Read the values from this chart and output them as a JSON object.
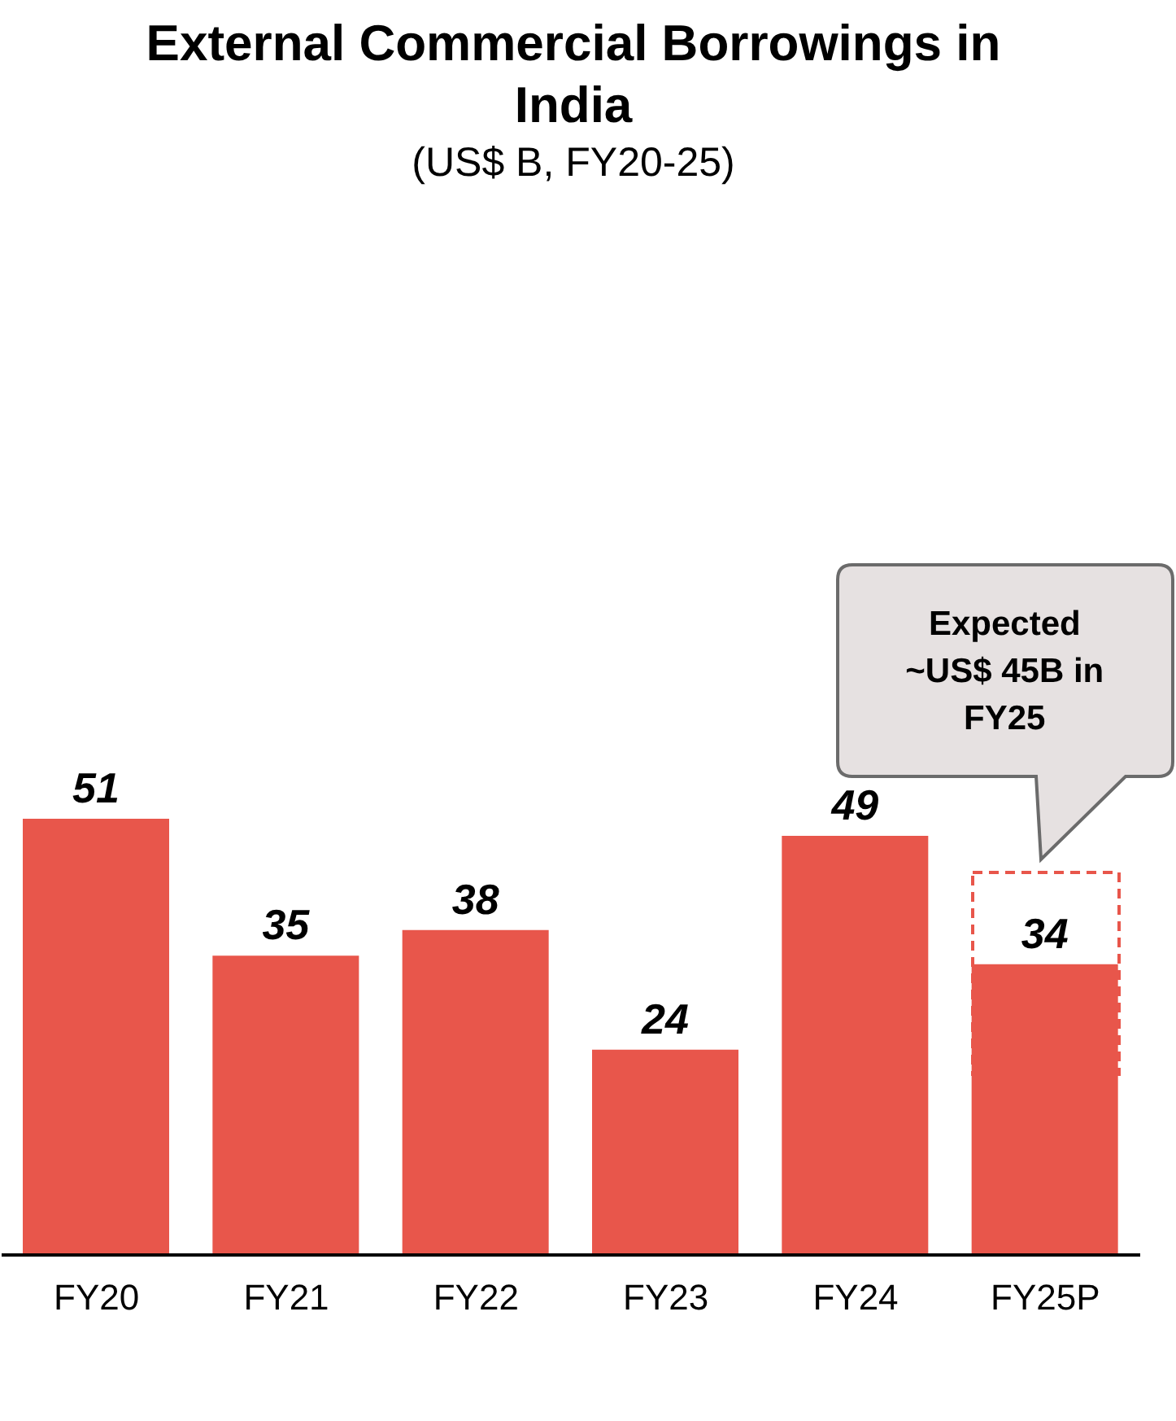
{
  "chart_data": {
    "type": "bar",
    "title": "External Commercial Borrowings in India",
    "subtitle": "(US$ B, FY20-25)",
    "categories": [
      "FY20",
      "FY21",
      "FY22",
      "FY23",
      "FY24",
      "FY25P"
    ],
    "values": [
      51,
      35,
      38,
      24,
      49,
      34
    ],
    "color": "#e8564b",
    "data_labels": true,
    "annotations": [
      "Expected ~US$ 45B in FY25"
    ]
  }
}
